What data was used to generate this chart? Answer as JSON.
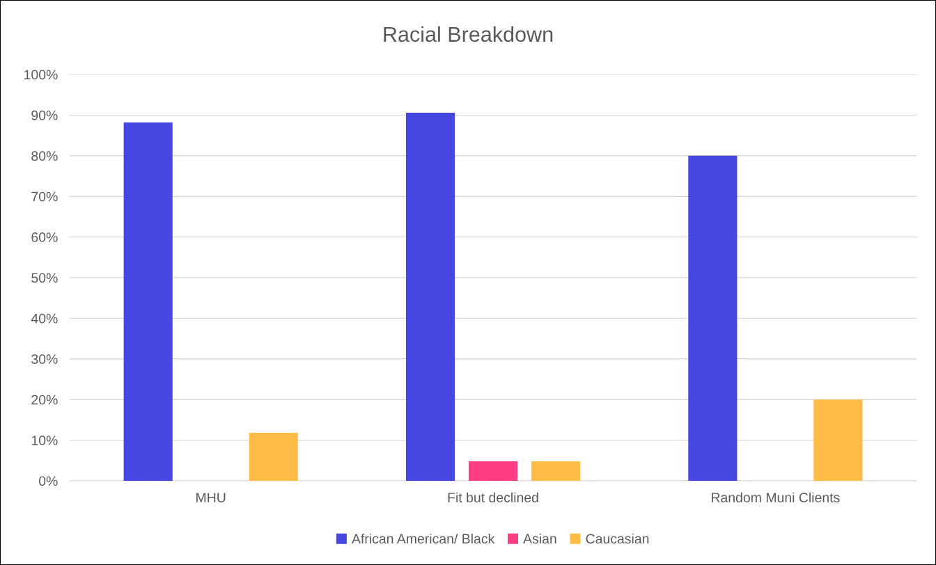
{
  "chart_data": {
    "type": "bar",
    "title": "Racial Breakdown",
    "categories": [
      "MHU",
      "Fit but declined",
      "Random Muni Clients"
    ],
    "series": [
      {
        "name": "African American/ Black",
        "color": "#4646e0",
        "values": [
          88.2,
          90.6,
          80
        ]
      },
      {
        "name": "Asian",
        "color": "#ff3d83",
        "values": [
          0,
          4.8,
          0
        ]
      },
      {
        "name": "Caucasian",
        "color": "#ffbd48",
        "values": [
          11.8,
          4.8,
          20
        ]
      }
    ],
    "ylim": [
      0,
      100
    ],
    "yticks": [
      {
        "value": 0,
        "label": "0%"
      },
      {
        "value": 10,
        "label": "10%"
      },
      {
        "value": 20,
        "label": "20%"
      },
      {
        "value": 30,
        "label": "30%"
      },
      {
        "value": 40,
        "label": "40%"
      },
      {
        "value": 50,
        "label": "50%"
      },
      {
        "value": 60,
        "label": "60%"
      },
      {
        "value": 70,
        "label": "70%"
      },
      {
        "value": 80,
        "label": "80%"
      },
      {
        "value": 90,
        "label": "90%"
      },
      {
        "value": 100,
        "label": "100%"
      }
    ],
    "grid": "y",
    "legend": "bottom"
  }
}
